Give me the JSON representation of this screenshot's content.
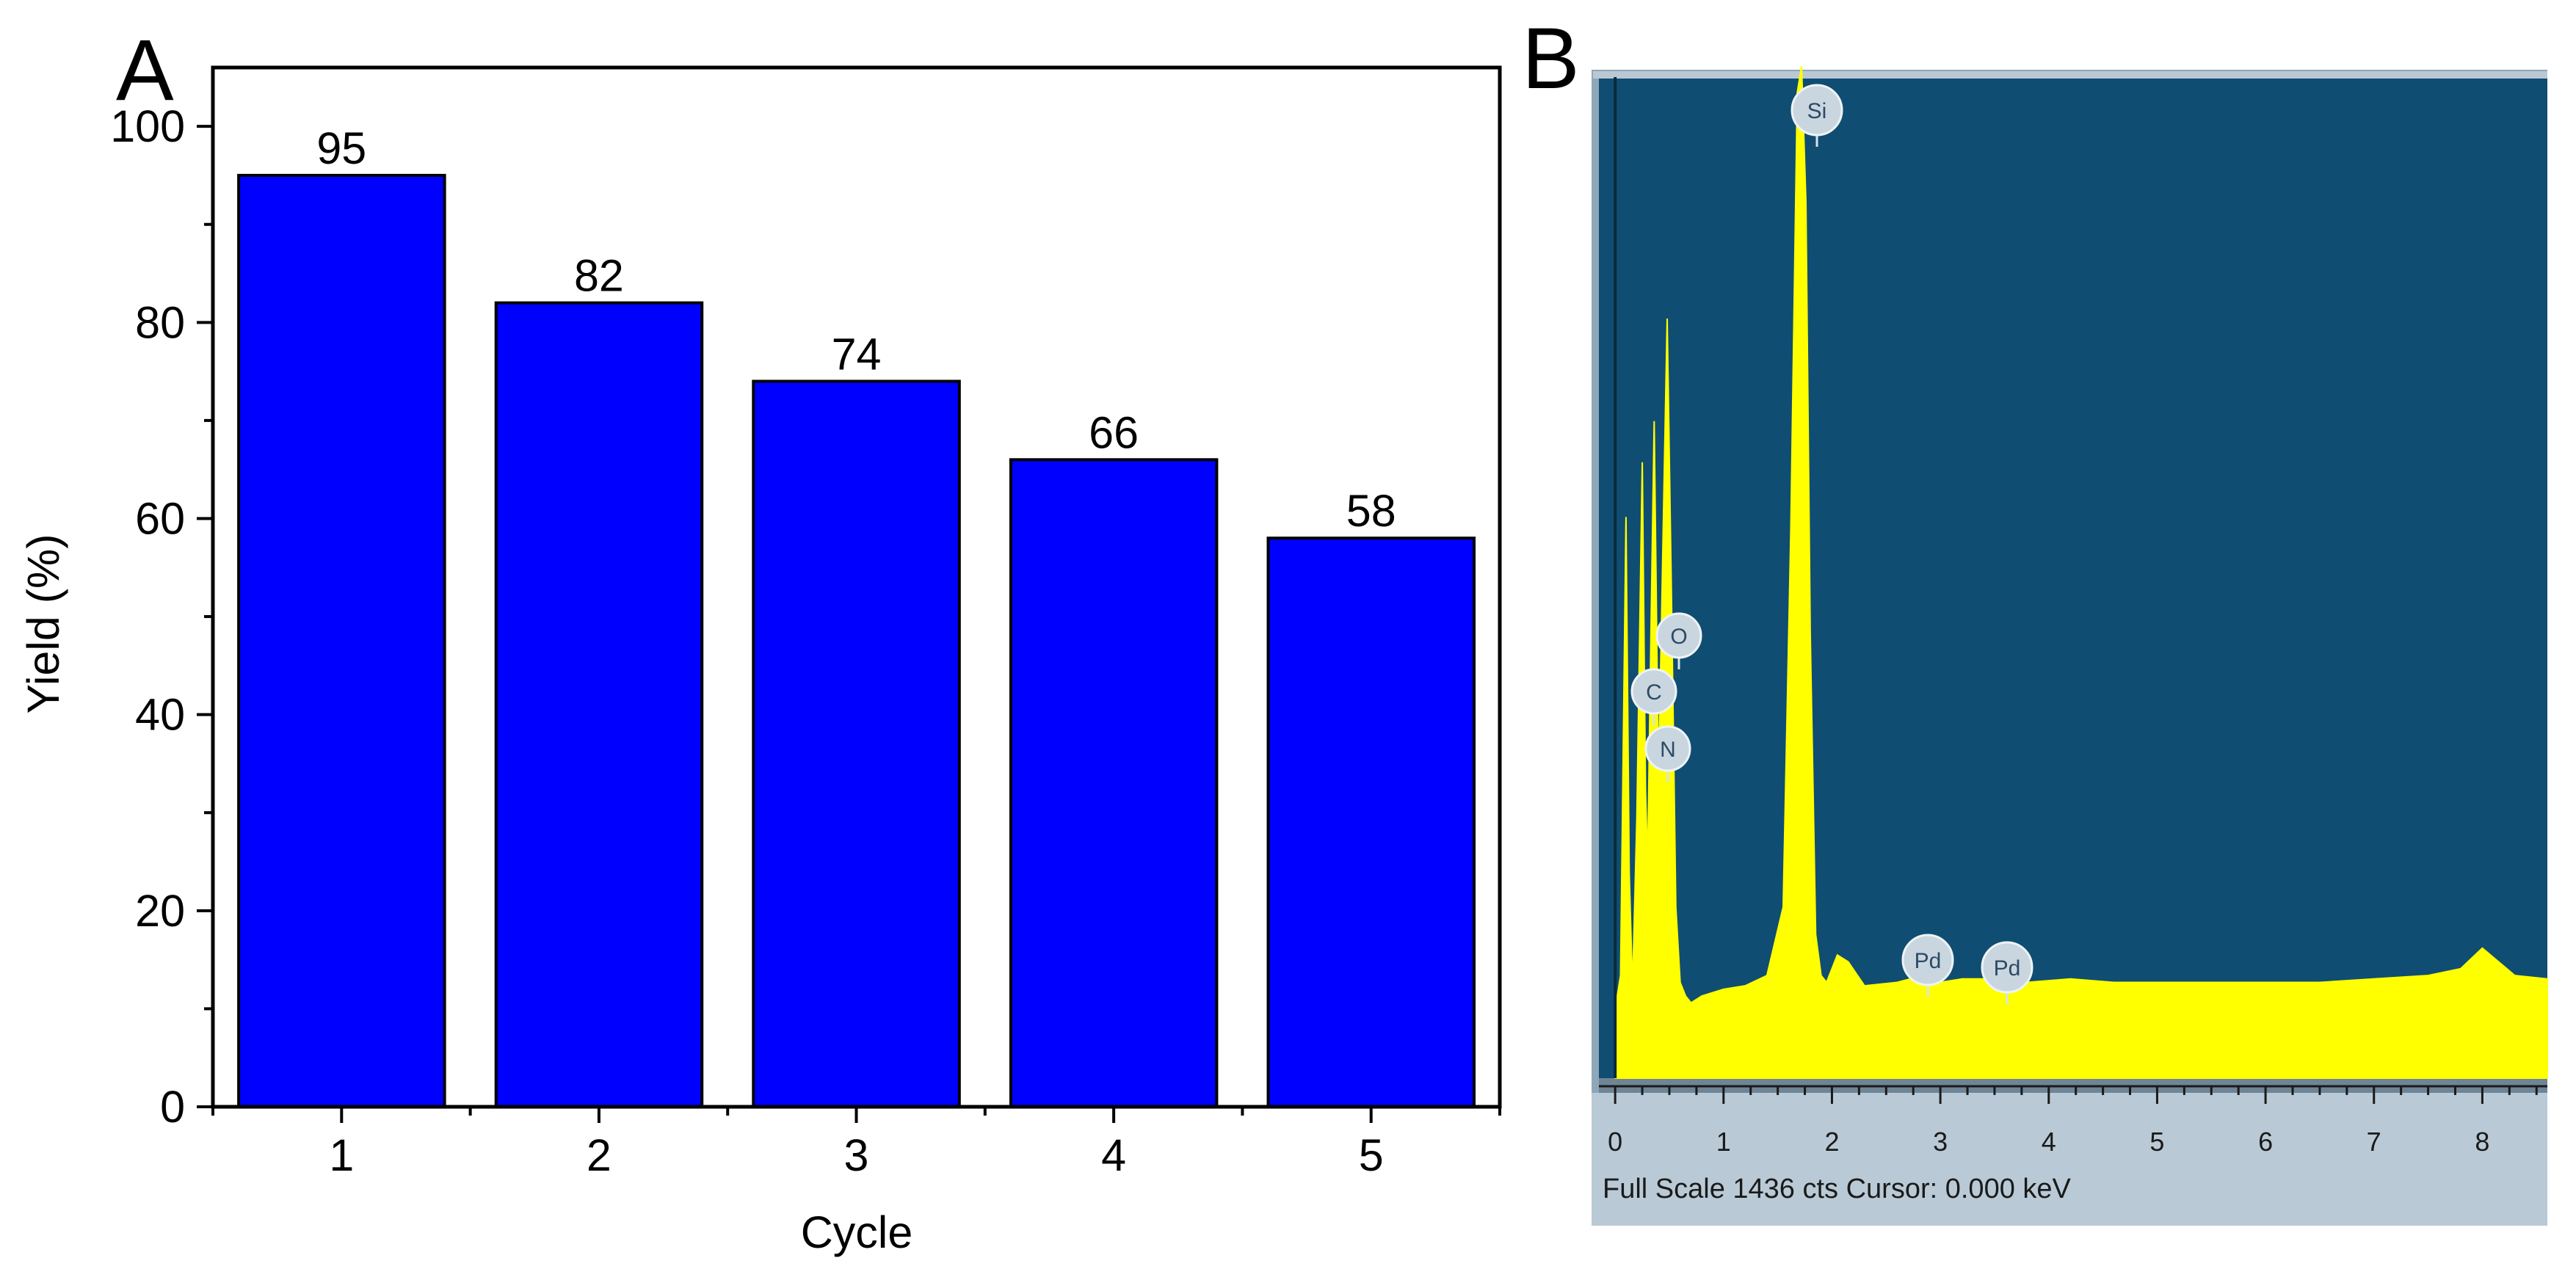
{
  "colors": {
    "bar_fill": "#0000ff",
    "eds_background": "#104d72",
    "eds_spectrum": "#ffff00",
    "eds_frame": "#8fa7b8"
  },
  "chart_data": [
    {
      "type": "bar",
      "panel": "A",
      "categories": [
        "1",
        "2",
        "3",
        "4",
        "5"
      ],
      "values": [
        95,
        82,
        74,
        66,
        58
      ],
      "data_labels": [
        "95",
        "82",
        "74",
        "66",
        "58"
      ],
      "xlabel": "Cycle",
      "ylabel": "Yield (%)",
      "ylim": [
        0,
        100
      ],
      "yticks": [
        "0",
        "20",
        "40",
        "60",
        "80",
        "100"
      ],
      "grid": false
    },
    {
      "type": "line",
      "panel": "B",
      "xlim": [
        -0.15,
        8.6
      ],
      "ylim": [
        0,
        1436
      ],
      "xticks": [
        "0",
        "1",
        "2",
        "3",
        "4",
        "5",
        "6",
        "7",
        "8"
      ],
      "series": [
        {
          "x": [
            0.0,
            0.05,
            0.1,
            0.13,
            0.16,
            0.2,
            0.25,
            0.28,
            0.3,
            0.33,
            0.36,
            0.4,
            0.45,
            0.48,
            0.52,
            0.56,
            0.6,
            0.65,
            0.7,
            0.8,
            0.9,
            1.0,
            1.2,
            1.4,
            1.55,
            1.62,
            1.68,
            1.72,
            1.76,
            1.8,
            1.85,
            1.9,
            1.95,
            2.05,
            2.15,
            2.3,
            2.6,
            2.85,
            3.0,
            3.2,
            3.5,
            3.8,
            4.2,
            4.6,
            5.0,
            5.5,
            6.0,
            6.5,
            7.0,
            7.5,
            7.8,
            8.0,
            8.3,
            8.6
          ],
          "y": [
            100,
            150,
            820,
            300,
            130,
            380,
            900,
            420,
            310,
            650,
            960,
            430,
            860,
            1110,
            700,
            250,
            140,
            120,
            110,
            120,
            125,
            130,
            135,
            150,
            250,
            800,
            1440,
            1560,
            1280,
            650,
            210,
            150,
            140,
            180,
            170,
            135,
            140,
            150,
            140,
            145,
            145,
            140,
            145,
            140,
            140,
            140,
            140,
            140,
            145,
            150,
            160,
            190,
            150,
            145
          ]
        }
      ],
      "peak_labels": [
        {
          "label": "Si",
          "x": 1.74
        },
        {
          "label": "O",
          "x": 0.52
        },
        {
          "label": "C",
          "x": 0.28
        },
        {
          "label": "N",
          "x": 0.39
        },
        {
          "label": "Pd",
          "x": 2.84
        },
        {
          "label": "Pd",
          "x": 3.55
        }
      ],
      "status_text": "Full Scale 1436 cts  Cursor: 0.000 keV"
    }
  ]
}
